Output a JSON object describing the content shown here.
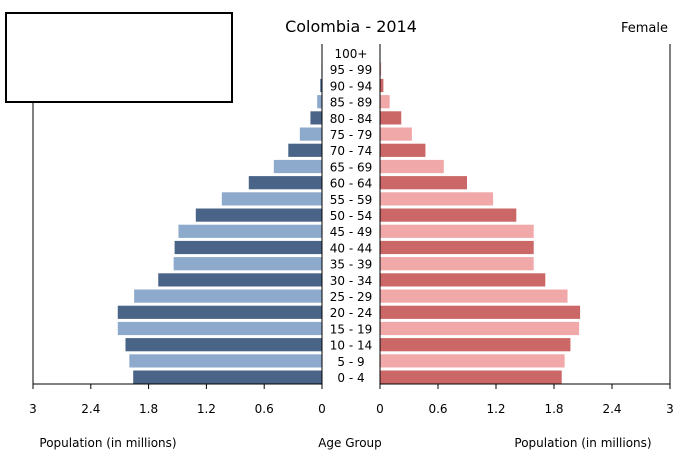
{
  "chart_data": {
    "type": "bar",
    "title": "Colombia - 2014",
    "right_label": "Female",
    "age_groups": [
      "100+",
      "95 - 99",
      "90 - 94",
      "85 - 89",
      "80 - 84",
      "75 - 79",
      "70 - 74",
      "65 - 69",
      "60 - 64",
      "55 - 59",
      "50 - 54",
      "45 - 49",
      "40 - 44",
      "35 - 39",
      "30 - 34",
      "25 - 29",
      "20 - 24",
      "15 - 19",
      "10 - 14",
      "5 - 9",
      "0 - 4"
    ],
    "series": [
      {
        "side": "left",
        "values": [
          0.001,
          0.006,
          0.018,
          0.05,
          0.12,
          0.23,
          0.35,
          0.5,
          0.76,
          1.04,
          1.31,
          1.49,
          1.53,
          1.54,
          1.7,
          1.95,
          2.12,
          2.12,
          2.04,
          2.0,
          1.96
        ]
      },
      {
        "side": "right",
        "values": [
          0.002,
          0.012,
          0.035,
          0.1,
          0.22,
          0.33,
          0.47,
          0.66,
          0.9,
          1.17,
          1.41,
          1.59,
          1.59,
          1.59,
          1.71,
          1.94,
          2.07,
          2.06,
          1.97,
          1.91,
          1.88
        ]
      }
    ],
    "colors": {
      "left_dark": "#4a6488",
      "left_light": "#8da9cc",
      "right_dark": "#cb6767",
      "right_light": "#f0a8a8"
    },
    "ticks_left": [
      "3",
      "2.4",
      "1.8",
      "1.2",
      "0.6",
      "0"
    ],
    "ticks_right": [
      "0",
      "0.6",
      "1.2",
      "1.8",
      "2.4",
      "3"
    ],
    "xlim": [
      0,
      3
    ],
    "xlabel_left": "Population (in millions)",
    "xlabel_center": "Age Group",
    "xlabel_right": "Population (in millions)"
  }
}
